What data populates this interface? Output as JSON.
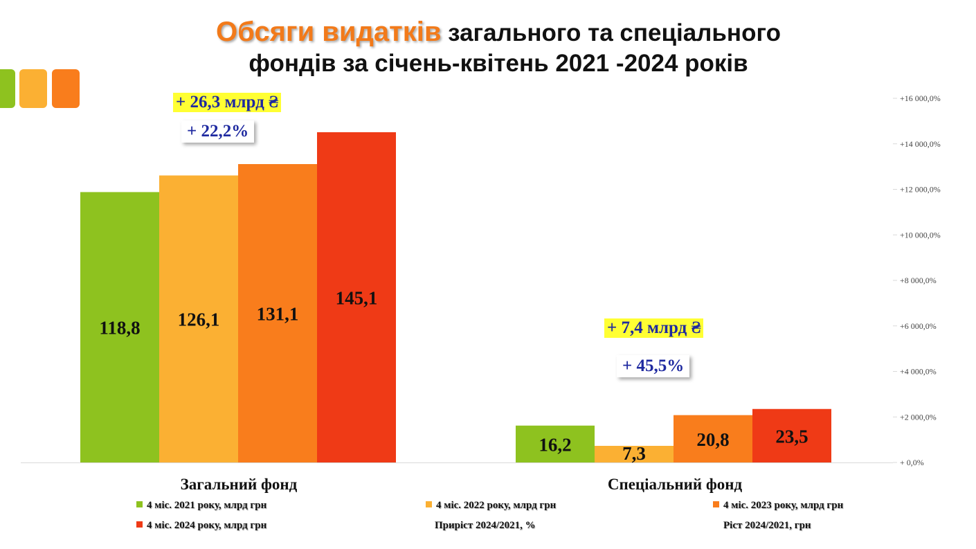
{
  "title": {
    "accent": "Обсяги видатків",
    "line1_rest": " загального та спеціального",
    "line2": "фондів за січень-квітень 2021 -2024 років"
  },
  "colors": {
    "deco": [
      "#8ec21f",
      "#fbb033",
      "#f97d1c"
    ]
  },
  "annotations": {
    "general_abs": "+ 26,3 млрд ₴",
    "general_pct": "+ 22,2%",
    "special_abs": "+ 7,4 млрд ₴",
    "special_pct": "+ 45,5%"
  },
  "legend": [
    {
      "label": "4 міс. 2021 року, млрд грн",
      "color": "#8ec21f"
    },
    {
      "label": "4 міс. 2022 року, млрд грн",
      "color": "#fbb033"
    },
    {
      "label": "4 міс. 2023 року, млрд грн",
      "color": "#f97d1c"
    },
    {
      "label": "4 міс. 2024 року, млрд грн",
      "color": "#ef3a16"
    },
    {
      "label": "Приріст 2024/2021, %",
      "color": null
    },
    {
      "label": "Ріст 2024/2021, грн",
      "color": null
    }
  ],
  "chart_data": {
    "type": "bar",
    "categories": [
      "Загальний фонд",
      "Спеціальний фонд"
    ],
    "series": [
      {
        "name": "4 міс. 2021 року, млрд грн",
        "color": "#8ec21f",
        "values": [
          118.8,
          16.2
        ],
        "labels": [
          "118,8",
          "16,2"
        ]
      },
      {
        "name": "4 міс. 2022 року, млрд грн",
        "color": "#fbb033",
        "values": [
          126.1,
          7.3
        ],
        "labels": [
          "126,1",
          "7,3"
        ]
      },
      {
        "name": "4 міс. 2023 року, млрд грн",
        "color": "#f97d1c",
        "values": [
          131.1,
          20.8
        ],
        "labels": [
          "131,1",
          "20,8"
        ]
      },
      {
        "name": "4 міс. 2024 року, млрд грн",
        "color": "#ef3a16",
        "values": [
          145.1,
          23.5
        ],
        "labels": [
          "145,1",
          "23,5"
        ]
      }
    ],
    "ylim": [
      0,
      160
    ],
    "right_axis_ticks": [
      "+ 0,0%",
      "+2 000,0%",
      "+4 000,0%",
      "+6 000,0%",
      "+8 000,0%",
      "+10 000,0%",
      "+12 000,0%",
      "+14 000,0%",
      "+16 000,0%"
    ],
    "grid": false,
    "legend_position": "bottom"
  }
}
